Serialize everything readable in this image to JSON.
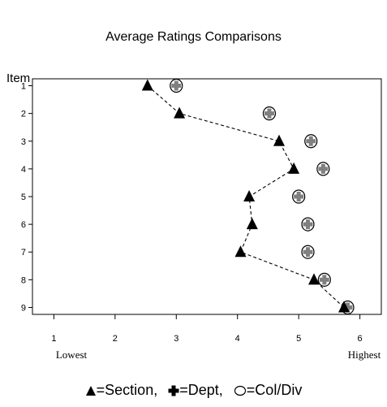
{
  "chart_data": {
    "type": "scatter",
    "title": "Average Ratings Comparisons",
    "ylabel": "Item",
    "xlabel": "",
    "xlim": [
      0.65,
      6.35
    ],
    "ylim": [
      9.25,
      0.75
    ],
    "x_ticks": [
      1,
      2,
      3,
      4,
      5,
      6
    ],
    "y_ticks": [
      1,
      2,
      3,
      4,
      5,
      6,
      7,
      8,
      9
    ],
    "x_end_labels": {
      "low": "Lowest",
      "high": "Highest"
    },
    "items": [
      1,
      2,
      3,
      4,
      5,
      6,
      7,
      8,
      9
    ],
    "series": [
      {
        "name": "Section",
        "marker": "triangle",
        "connected": true,
        "values": [
          2.53,
          3.05,
          4.68,
          4.92,
          4.19,
          4.24,
          4.05,
          5.25,
          5.74
        ]
      },
      {
        "name": "Dept",
        "marker": "plus",
        "values": [
          3.0,
          4.52,
          5.2,
          5.4,
          5.0,
          5.15,
          5.15,
          5.42,
          5.8
        ]
      },
      {
        "name": "Col/Div",
        "marker": "circle",
        "values": [
          3.0,
          4.52,
          5.2,
          5.4,
          5.0,
          5.15,
          5.15,
          5.42,
          5.8
        ]
      }
    ],
    "legend": [
      {
        "symbol": "triangle",
        "text": "=Section,"
      },
      {
        "symbol": "plus",
        "text": "=Dept,"
      },
      {
        "symbol": "circle",
        "text": "=Col/Div"
      }
    ],
    "legend_position": "bottom",
    "grid": false
  }
}
